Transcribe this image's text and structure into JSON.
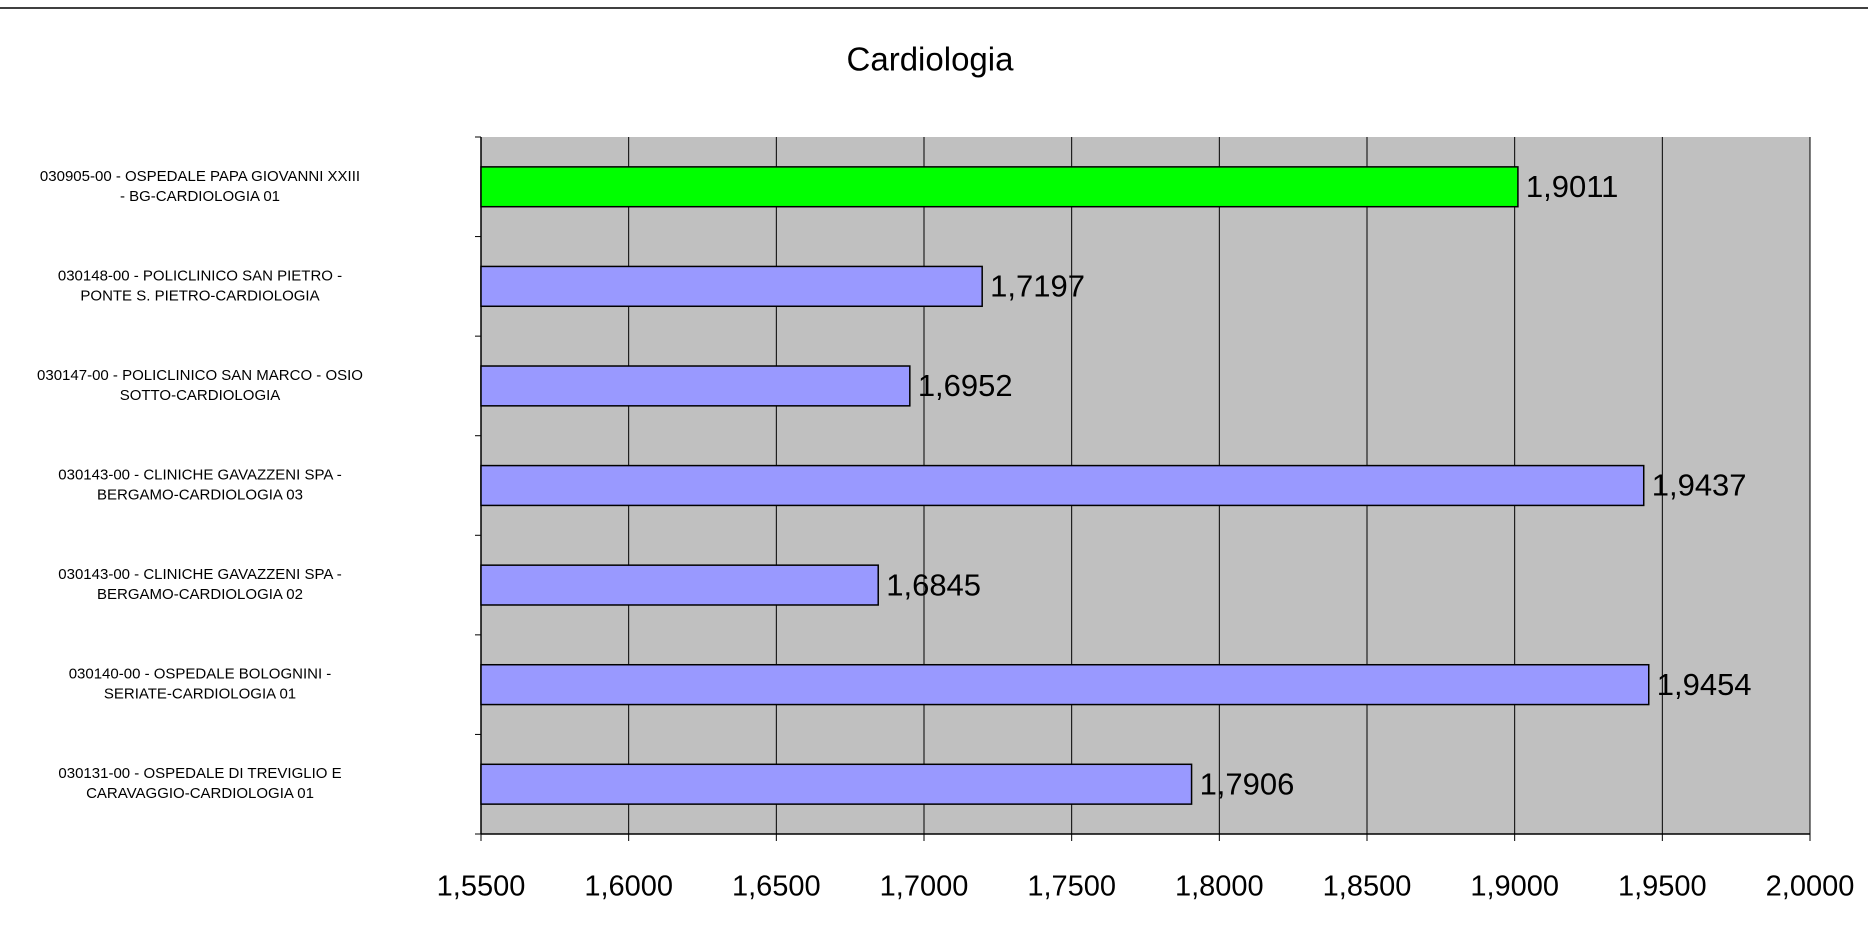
{
  "chart_data": {
    "type": "barh",
    "title": "Cardiologia",
    "categories": [
      "030905-00 - OSPEDALE PAPA GIOVANNI XXIII\n- BG-CARDIOLOGIA 01",
      "030148-00 - POLICLINICO SAN PIETRO  -\nPONTE S. PIETRO-CARDIOLOGIA",
      "030147-00 - POLICLINICO SAN MARCO - OSIO\nSOTTO-CARDIOLOGIA",
      "030143-00 - CLINICHE GAVAZZENI SPA -\nBERGAMO-CARDIOLOGIA 03",
      "030143-00 - CLINICHE GAVAZZENI SPA -\nBERGAMO-CARDIOLOGIA 02",
      "030140-00 - OSPEDALE BOLOGNINI -\nSERIATE-CARDIOLOGIA 01",
      "030131-00 - OSPEDALE DI TREVIGLIO E\nCARAVAGGIO-CARDIOLOGIA 01"
    ],
    "values": [
      1.9011,
      1.7197,
      1.6952,
      1.9437,
      1.6845,
      1.9454,
      1.7906
    ],
    "value_labels": [
      "1,9011",
      "1,7197",
      "1,6952",
      "1,9437",
      "1,6845",
      "1,9454",
      "1,7906"
    ],
    "colors": [
      "#00ff00",
      "#9999ff",
      "#9999ff",
      "#9999ff",
      "#9999ff",
      "#9999ff",
      "#9999ff"
    ],
    "xlim": [
      1.55,
      2.0
    ],
    "xticks": [
      {
        "value": 1.55,
        "label": "1,5500"
      },
      {
        "value": 1.6,
        "label": "1,6000"
      },
      {
        "value": 1.65,
        "label": "1,6500"
      },
      {
        "value": 1.7,
        "label": "1,7000"
      },
      {
        "value": 1.75,
        "label": "1,7500"
      },
      {
        "value": 1.8,
        "label": "1,8000"
      },
      {
        "value": 1.85,
        "label": "1,8500"
      },
      {
        "value": 1.9,
        "label": "1,9000"
      },
      {
        "value": 1.95,
        "label": "1,9500"
      },
      {
        "value": 2.0,
        "label": "2,0000"
      }
    ],
    "grid": true,
    "plot_background": "#c0c0c0"
  }
}
